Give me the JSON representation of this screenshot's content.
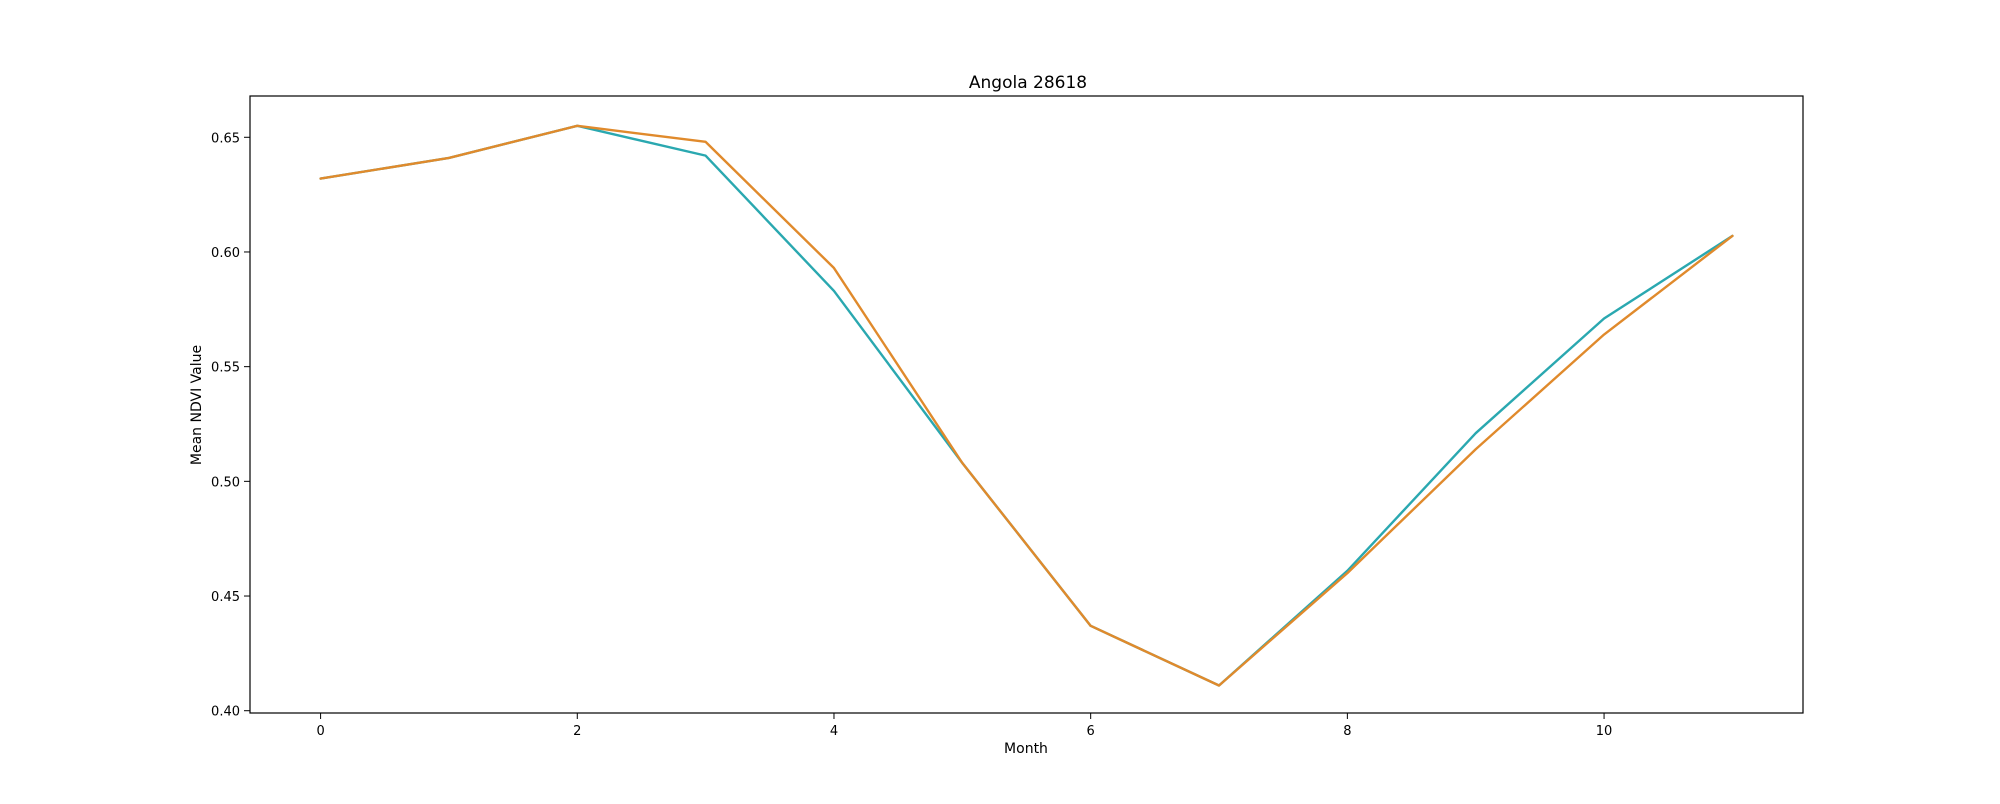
{
  "chart_data": {
    "type": "line",
    "title": "Angola 28618",
    "xlabel": "Month",
    "ylabel": "Mean NDVI Value",
    "x": [
      0,
      1,
      2,
      3,
      4,
      5,
      6,
      7,
      8,
      9,
      10,
      11
    ],
    "xlim": [
      -0.55,
      11.55
    ],
    "ylim": [
      0.399,
      0.668
    ],
    "xticks": [
      0,
      2,
      4,
      6,
      8,
      10
    ],
    "yticks": [
      0.4,
      0.45,
      0.5,
      0.55,
      0.6,
      0.65
    ],
    "ytick_labels": [
      "0.40",
      "0.45",
      "0.50",
      "0.55",
      "0.60",
      "0.65"
    ],
    "grid": false,
    "legend": "none",
    "series": [
      {
        "color": "#2aa8b0",
        "values": [
          0.632,
          0.641,
          0.655,
          0.642,
          0.583,
          0.508,
          0.437,
          0.411,
          0.461,
          0.521,
          0.571,
          0.607
        ]
      },
      {
        "color": "#e08a2c",
        "values": [
          0.632,
          0.641,
          0.655,
          0.648,
          0.593,
          0.508,
          0.437,
          0.411,
          0.46,
          0.514,
          0.564,
          0.607
        ]
      }
    ]
  }
}
